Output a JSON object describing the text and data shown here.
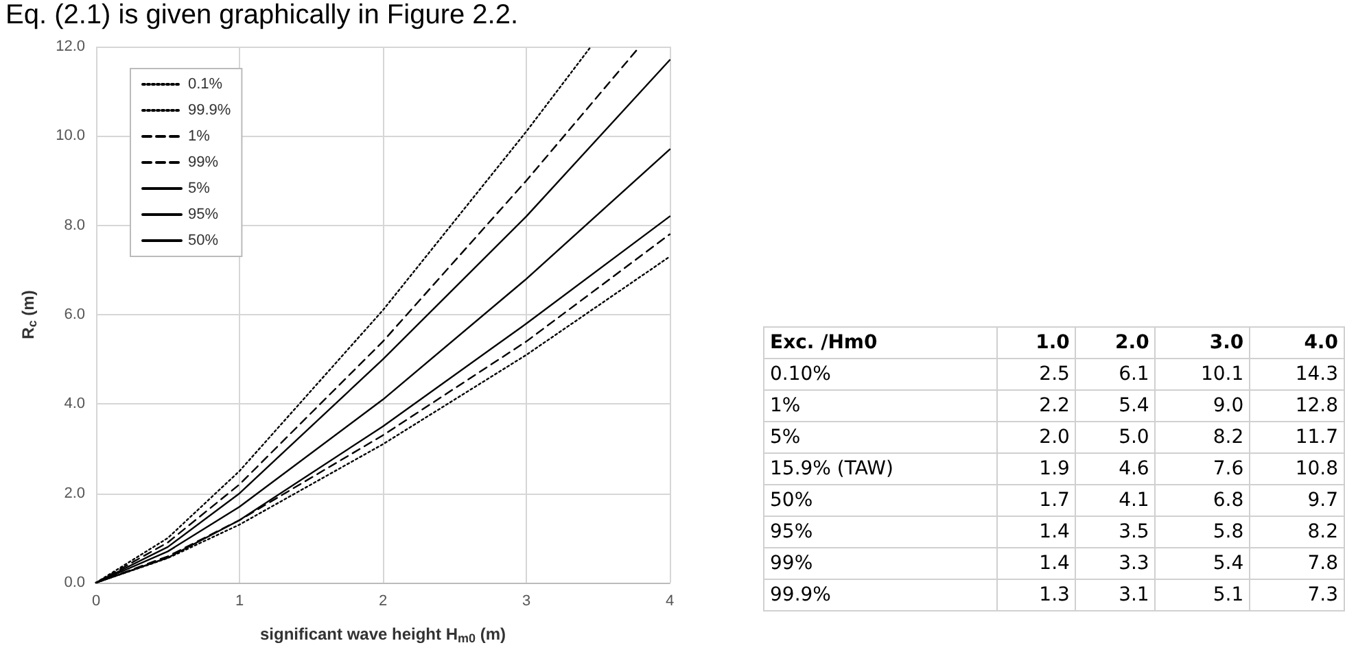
{
  "chart_data": [
    {
      "type": "line",
      "title": "Eq. (2.1) is given graphically in Figure 2.2.",
      "xlabel": "significant wave height H$_{m0}$ (m)",
      "ylabel": "R$_{c}$ (m)",
      "xlim": [
        0,
        4
      ],
      "xticks": [
        0,
        1,
        2,
        3,
        4
      ],
      "ylim": [
        0,
        12
      ],
      "yticks": [
        {
          "value": 0,
          "label": "0.0"
        },
        {
          "value": 2,
          "label": "2.0"
        },
        {
          "value": 4,
          "label": "4.0"
        },
        {
          "value": 6,
          "label": "6.0"
        },
        {
          "value": 8,
          "label": "8.0"
        },
        {
          "value": 10,
          "label": "10.0"
        },
        {
          "value": 12,
          "label": "12.0"
        }
      ],
      "grid": true,
      "legend": "top left",
      "marker": "none",
      "series": [
        {
          "name": "0.1%",
          "color": "#000000",
          "line_style": "dotted",
          "x": [
            0,
            0.5,
            1,
            2,
            3,
            3.45
          ],
          "values": [
            0,
            1.0,
            2.5,
            6.1,
            10.1,
            12
          ]
        },
        {
          "name": "99.9%",
          "color": "#000000",
          "line_style": "dotted",
          "x": [
            0,
            0.5,
            1,
            2,
            3,
            4
          ],
          "values": [
            0,
            0.55,
            1.3,
            3.1,
            5.1,
            7.3
          ]
        },
        {
          "name": "1%",
          "color": "#000000",
          "line_style": "dashed",
          "x": [
            0,
            0.5,
            1,
            2,
            3,
            3.79
          ],
          "values": [
            0,
            0.9,
            2.2,
            5.4,
            9.0,
            12
          ]
        },
        {
          "name": "99%",
          "color": "#000000",
          "line_style": "dashed",
          "x": [
            0,
            0.5,
            1,
            2,
            3,
            4
          ],
          "values": [
            0,
            0.59,
            1.4,
            3.3,
            5.4,
            7.8
          ]
        },
        {
          "name": "5%",
          "color": "#000000",
          "line_style": "solid",
          "x": [
            0,
            0.5,
            1,
            2,
            3,
            4
          ],
          "values": [
            0,
            0.8,
            2.0,
            5.0,
            8.2,
            11.7
          ]
        },
        {
          "name": "95%",
          "color": "#000000",
          "line_style": "solid",
          "x": [
            0,
            0.5,
            1,
            2,
            3,
            4
          ],
          "values": [
            0,
            0.56,
            1.4,
            3.5,
            5.8,
            8.2
          ]
        },
        {
          "name": "50%",
          "color": "#000000",
          "line_style": "solid",
          "x": [
            0,
            0.5,
            1,
            2,
            3,
            4
          ],
          "values": [
            0,
            0.7,
            1.7,
            4.1,
            6.8,
            9.7
          ]
        }
      ]
    },
    {
      "type": "heatmap",
      "xlabel": "Exc. /Hm0",
      "categories": [
        "1.0",
        "2.0",
        "3.0",
        "4.0"
      ],
      "y_categories": [
        "0.10%",
        "1%",
        "5%",
        "15.9% (TAW)",
        "50%",
        "95%",
        "99%",
        "99.9%"
      ],
      "cells": [
        [
          2.5,
          6.1,
          10.1,
          14.3
        ],
        [
          2.2,
          5.4,
          9.0,
          12.8
        ],
        [
          2.0,
          5.0,
          8.2,
          11.7
        ],
        [
          1.9,
          4.6,
          7.6,
          10.8
        ],
        [
          1.7,
          4.1,
          6.8,
          9.7
        ],
        [
          1.4,
          3.5,
          5.8,
          8.2
        ],
        [
          1.4,
          3.3,
          5.4,
          7.8
        ],
        [
          1.3,
          3.1,
          5.1,
          7.3
        ]
      ],
      "cell_labels": [
        [
          "2.5",
          "6.1",
          "10.1",
          "14.3"
        ],
        [
          "2.2",
          "5.4",
          "9.0",
          "12.8"
        ],
        [
          "2.0",
          "5.0",
          "8.2",
          "11.7"
        ],
        [
          "1.9",
          "4.6",
          "7.6",
          "10.8"
        ],
        [
          "1.7",
          "4.1",
          "6.8",
          "9.7"
        ],
        [
          "1.4",
          "3.5",
          "5.8",
          "8.2"
        ],
        [
          "1.4",
          "3.3",
          "5.4",
          "7.8"
        ],
        [
          "1.3",
          "3.1",
          "5.1",
          "7.3"
        ]
      ],
      "data_labels": true
    }
  ]
}
